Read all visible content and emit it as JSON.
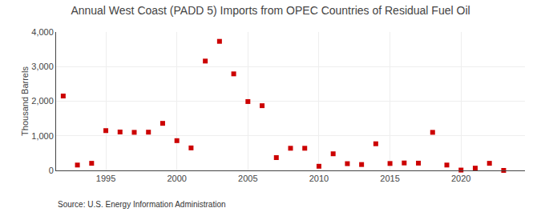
{
  "chart_data": {
    "type": "scatter",
    "title": "Annual West Coast (PADD 5) Imports from OPEC Countries of Residual Fuel Oil",
    "ylabel": "Thousand Barrels",
    "annotations": [
      "Source: U.S. Energy Information Administration"
    ],
    "x": [
      1992,
      1993,
      1994,
      1995,
      1996,
      1997,
      1998,
      1999,
      2000,
      2001,
      2002,
      2003,
      2004,
      2005,
      2006,
      2007,
      2008,
      2009,
      2010,
      2011,
      2012,
      2013,
      2014,
      2015,
      2016,
      2017,
      2018,
      2019,
      2020,
      2021,
      2022,
      2023
    ],
    "values": [
      2150,
      155,
      205,
      1150,
      1110,
      1100,
      1105,
      1360,
      860,
      650,
      3160,
      3730,
      2790,
      1990,
      1870,
      370,
      640,
      640,
      120,
      480,
      195,
      170,
      770,
      200,
      215,
      210,
      1100,
      155,
      10,
      65,
      205,
      0
    ],
    "color": "#cc0000",
    "marker": "square",
    "xlim": [
      1991.5,
      2024.5
    ],
    "xticks": [
      1995,
      2000,
      2005,
      2010,
      2015,
      2020
    ],
    "ylim": [
      0,
      4000
    ],
    "yticks": [
      0,
      {
        "value": 1000,
        "label": "1,000"
      },
      {
        "value": 2000,
        "label": "2,000"
      },
      {
        "value": 3000,
        "label": "3,000"
      },
      {
        "value": 4000,
        "label": "4,000"
      }
    ],
    "grid": true
  }
}
